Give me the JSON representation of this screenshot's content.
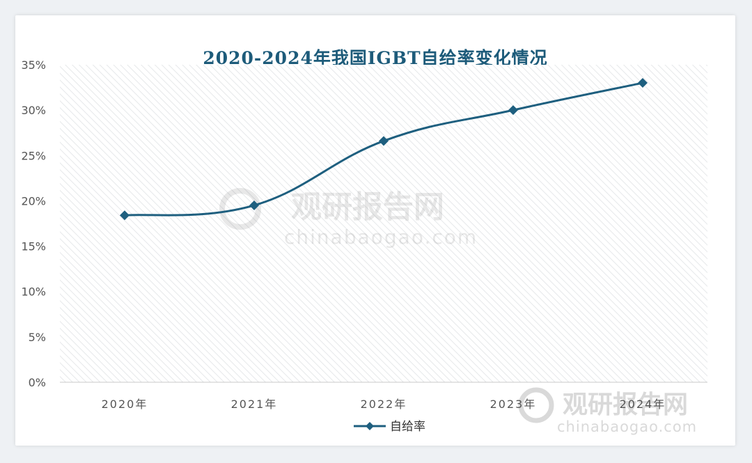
{
  "chart_data": {
    "type": "line",
    "title": "2020-2024年我国IGBT自给率变化情况",
    "categories": [
      "2020年",
      "2021年",
      "2022年",
      "2023年",
      "2024年"
    ],
    "series": [
      {
        "name": "自给率",
        "values": [
          18.4,
          19.5,
          26.6,
          30.0,
          33.0
        ]
      }
    ],
    "ylim": [
      0,
      35
    ],
    "yticks": [
      0,
      5,
      10,
      15,
      20,
      25,
      30,
      35
    ],
    "ytick_labels": [
      "0%",
      "5%",
      "10%",
      "15%",
      "20%",
      "25%",
      "30%",
      "35%"
    ],
    "xlabel": "",
    "ylabel": "",
    "grid": false,
    "legend": "bottom-center",
    "line_color": "#1e5f7f"
  },
  "watermark": {
    "name": "观研报告网",
    "url": "chinabaogao.com"
  }
}
